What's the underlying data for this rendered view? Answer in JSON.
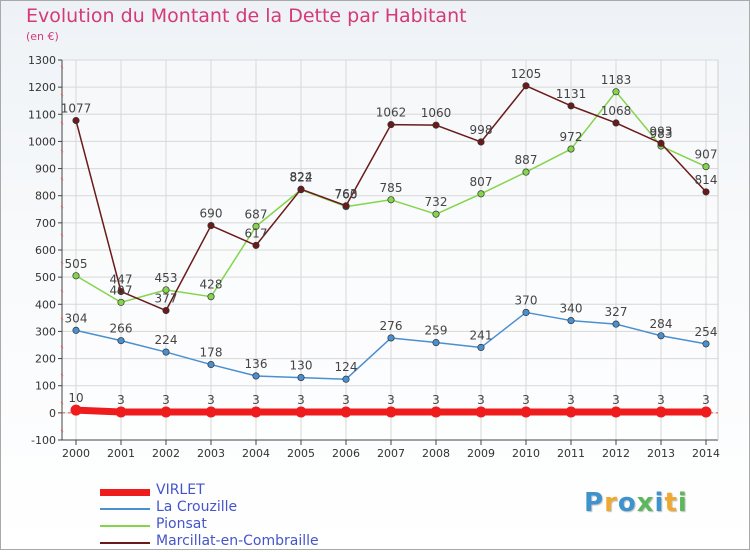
{
  "title": "Evolution du Montant de la Dette par Habitant",
  "unit": "(en €)",
  "brand": {
    "text": "Proxiti",
    "colors": [
      "#3f93cc",
      "#f0a830",
      "#3f93cc",
      "#5cb85c",
      "#3f93cc",
      "#f0a830",
      "#5cb85c"
    ]
  },
  "chart_data": {
    "type": "line",
    "title": "Evolution du Montant de la Dette par Habitant",
    "ylabel": "(en €)",
    "xlabel": "",
    "x": [
      "2000",
      "2001",
      "2002",
      "2003",
      "2004",
      "2005",
      "2006",
      "2007",
      "2008",
      "2009",
      "2010",
      "2011",
      "2012",
      "2013",
      "2014"
    ],
    "ylim": [
      -100,
      1300
    ],
    "yticks": [
      -100,
      0,
      100,
      200,
      300,
      400,
      500,
      600,
      700,
      800,
      900,
      1000,
      1100,
      1200,
      1300
    ],
    "grid": true,
    "legend_position": "bottom-left",
    "series": [
      {
        "name": "VIRLET",
        "color": "#ee1c1c",
        "values": [
          10,
          3,
          3,
          3,
          3,
          3,
          3,
          3,
          3,
          3,
          3,
          3,
          3,
          3,
          3
        ]
      },
      {
        "name": "La Crouzille",
        "color": "#4a90d0",
        "values": [
          304,
          266,
          224,
          178,
          136,
          130,
          124,
          276,
          259,
          241,
          370,
          340,
          327,
          284,
          254
        ]
      },
      {
        "name": "Pionsat",
        "color": "#84d44c",
        "values": [
          505,
          407,
          453,
          428,
          687,
          822,
          760,
          785,
          732,
          807,
          887,
          972,
          1183,
          983,
          907
        ]
      },
      {
        "name": "Marcillat-en-Combraille",
        "color": "#6b1a1a",
        "values": [
          1077,
          447,
          377,
          690,
          617,
          824,
          763,
          1062,
          1060,
          998,
          1205,
          1131,
          1068,
          993,
          814
        ]
      }
    ]
  }
}
